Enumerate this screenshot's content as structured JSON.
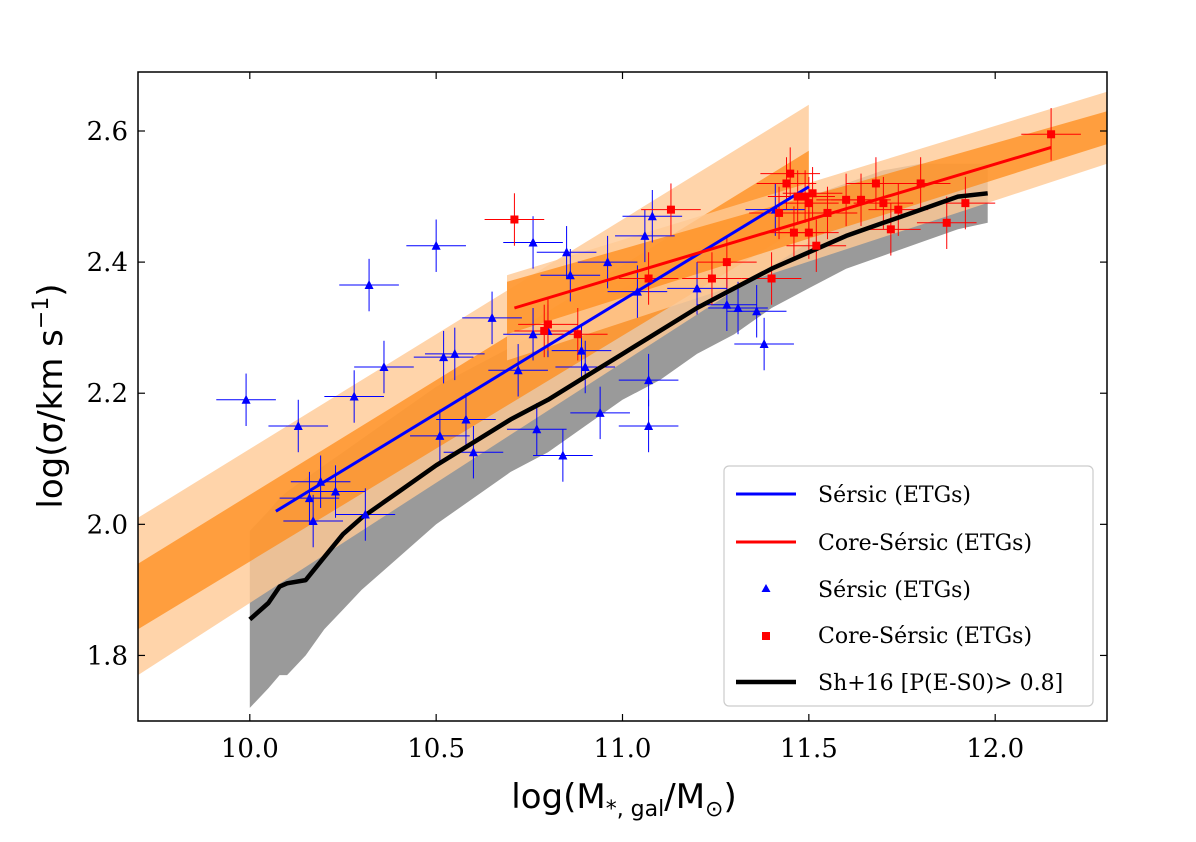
{
  "chart_data": {
    "type": "scatter",
    "title": "",
    "xlabel": "log(M",
    "xlabel_sub": "*, gal",
    "xlabel_tail": "/M",
    "xlabel_sun": "⊙",
    "xlabel_close": ")",
    "ylabel": "log(σ/km s",
    "ylabel_sup": "−1",
    "ylabel_close": ")",
    "xlim": [
      9.7,
      12.3
    ],
    "ylim": [
      1.7,
      2.69
    ],
    "xticks": [
      10.0,
      10.5,
      11.0,
      11.5,
      12.0
    ],
    "xtick_labels": [
      "10.0",
      "10.5",
      "11.0",
      "11.5",
      "12.0"
    ],
    "yticks": [
      1.8,
      2.0,
      2.2,
      2.4,
      2.6
    ],
    "ytick_labels": [
      "1.8",
      "2.0",
      "2.2",
      "2.4",
      "2.6"
    ],
    "legend": {
      "position": "lower-right",
      "entries": [
        {
          "label": "Sérsic (ETGs)",
          "kind": "line",
          "color": "#0000ff"
        },
        {
          "label": "Core-Sérsic (ETGs)",
          "kind": "line",
          "color": "#ff0000"
        },
        {
          "label": "Sérsic (ETGs)",
          "kind": "triangle",
          "color": "#0000ff"
        },
        {
          "label": "Core-Sérsic (ETGs)",
          "kind": "square",
          "color": "#ff0000"
        },
        {
          "label": "Sh+16 [P(E-S0)> 0.8]",
          "kind": "line",
          "color": "#000000"
        }
      ]
    },
    "fits": {
      "sersic": {
        "color": "#0000ff",
        "x": [
          10.07,
          11.5
        ],
        "y": [
          2.02,
          2.515
        ],
        "band_inner": {
          "x": [
            9.7,
            11.5
          ],
          "lower": [
            1.84,
            2.46
          ],
          "upper": [
            1.94,
            2.57
          ]
        },
        "band_outer": {
          "x": [
            9.7,
            11.5
          ],
          "lower": [
            1.77,
            2.43
          ],
          "upper": [
            2.01,
            2.64
          ]
        }
      },
      "core_sersic": {
        "color": "#ff0000",
        "x": [
          10.71,
          12.15
        ],
        "y": [
          2.33,
          2.575
        ],
        "band_inner": {
          "x": [
            10.69,
            12.3
          ],
          "lower": [
            2.29,
            2.58
          ],
          "upper": [
            2.37,
            2.63
          ]
        },
        "band_outer": {
          "x": [
            10.69,
            12.3
          ],
          "lower": [
            2.25,
            2.55
          ],
          "upper": [
            2.38,
            2.66
          ]
        }
      }
    },
    "sh16": {
      "color": "#000000",
      "x": [
        10.0,
        10.05,
        10.08,
        10.1,
        10.15,
        10.2,
        10.25,
        10.3,
        10.4,
        10.5,
        10.6,
        10.7,
        10.8,
        10.9,
        11.0,
        11.1,
        11.2,
        11.3,
        11.4,
        11.5,
        11.6,
        11.7,
        11.8,
        11.9,
        11.98
      ],
      "y": [
        1.855,
        1.88,
        1.905,
        1.91,
        1.915,
        1.95,
        1.985,
        2.01,
        2.05,
        2.09,
        2.125,
        2.16,
        2.19,
        2.225,
        2.26,
        2.295,
        2.33,
        2.36,
        2.39,
        2.415,
        2.44,
        2.46,
        2.48,
        2.5,
        2.505
      ],
      "band_lower": [
        1.72,
        1.75,
        1.77,
        1.77,
        1.8,
        1.84,
        1.87,
        1.9,
        1.95,
        2.0,
        2.04,
        2.08,
        2.11,
        2.15,
        2.19,
        2.22,
        2.26,
        2.29,
        2.33,
        2.36,
        2.39,
        2.41,
        2.43,
        2.45,
        2.46
      ],
      "band_upper": [
        1.99,
        2.02,
        2.04,
        2.05,
        2.07,
        2.09,
        2.11,
        2.13,
        2.17,
        2.21,
        2.24,
        2.27,
        2.3,
        2.33,
        2.36,
        2.39,
        2.42,
        2.45,
        2.48,
        2.5,
        2.52,
        2.54,
        2.55,
        2.55,
        2.55
      ]
    },
    "series": [
      {
        "name": "Sérsic (ETGs)",
        "marker": "triangle",
        "color": "#0000ff",
        "x": [
          9.99,
          10.13,
          10.17,
          10.16,
          10.19,
          10.23,
          10.28,
          10.32,
          10.31,
          10.36,
          10.5,
          10.52,
          10.51,
          10.55,
          10.58,
          10.6,
          10.65,
          10.72,
          10.76,
          10.77,
          10.76,
          10.8,
          10.84,
          10.85,
          10.86,
          10.89,
          10.9,
          10.94,
          10.96,
          11.04,
          11.06,
          11.07,
          11.07,
          11.08,
          11.2,
          11.28,
          11.31,
          11.36,
          11.38,
          11.41
        ],
        "y": [
          2.19,
          2.15,
          2.005,
          2.04,
          2.065,
          2.05,
          2.195,
          2.365,
          2.015,
          2.24,
          2.425,
          2.255,
          2.135,
          2.26,
          2.16,
          2.11,
          2.315,
          2.235,
          2.43,
          2.145,
          2.29,
          2.295,
          2.105,
          2.415,
          2.38,
          2.265,
          2.24,
          2.17,
          2.4,
          2.355,
          2.44,
          2.15,
          2.22,
          2.47,
          2.36,
          2.335,
          2.33,
          2.325,
          2.275,
          2.48
        ],
        "xerr": [
          0.08,
          0.08,
          0.08,
          0.08,
          0.08,
          0.08,
          0.08,
          0.08,
          0.08,
          0.08,
          0.08,
          0.08,
          0.08,
          0.08,
          0.08,
          0.08,
          0.08,
          0.08,
          0.08,
          0.08,
          0.08,
          0.08,
          0.08,
          0.08,
          0.08,
          0.08,
          0.08,
          0.08,
          0.08,
          0.08,
          0.08,
          0.08,
          0.08,
          0.08,
          0.08,
          0.08,
          0.08,
          0.08,
          0.08,
          0.08
        ],
        "yerr": [
          0.04,
          0.04,
          0.04,
          0.04,
          0.04,
          0.04,
          0.04,
          0.04,
          0.04,
          0.04,
          0.04,
          0.04,
          0.04,
          0.04,
          0.04,
          0.04,
          0.04,
          0.04,
          0.04,
          0.04,
          0.04,
          0.04,
          0.04,
          0.04,
          0.04,
          0.04,
          0.04,
          0.04,
          0.04,
          0.04,
          0.04,
          0.04,
          0.04,
          0.04,
          0.04,
          0.04,
          0.04,
          0.04,
          0.04,
          0.04
        ]
      },
      {
        "name": "Core-Sérsic (ETGs)",
        "marker": "square",
        "color": "#ff0000",
        "x": [
          10.71,
          10.79,
          10.8,
          10.88,
          11.07,
          11.13,
          11.24,
          11.28,
          11.4,
          11.42,
          11.44,
          11.45,
          11.46,
          11.47,
          11.49,
          11.5,
          11.5,
          11.51,
          11.52,
          11.55,
          11.6,
          11.64,
          11.68,
          11.7,
          11.72,
          11.74,
          11.8,
          11.87,
          11.92,
          12.15
        ],
        "y": [
          2.465,
          2.295,
          2.305,
          2.29,
          2.375,
          2.48,
          2.375,
          2.4,
          2.375,
          2.475,
          2.52,
          2.535,
          2.445,
          2.5,
          2.5,
          2.49,
          2.445,
          2.505,
          2.425,
          2.475,
          2.495,
          2.495,
          2.52,
          2.49,
          2.45,
          2.48,
          2.52,
          2.46,
          2.49,
          2.595
        ],
        "xerr": [
          0.08,
          0.08,
          0.08,
          0.08,
          0.08,
          0.08,
          0.08,
          0.08,
          0.08,
          0.08,
          0.08,
          0.08,
          0.08,
          0.08,
          0.08,
          0.08,
          0.08,
          0.08,
          0.08,
          0.08,
          0.08,
          0.08,
          0.08,
          0.08,
          0.08,
          0.08,
          0.08,
          0.08,
          0.08,
          0.08
        ],
        "yerr": [
          0.04,
          0.04,
          0.04,
          0.04,
          0.04,
          0.04,
          0.04,
          0.04,
          0.04,
          0.04,
          0.04,
          0.04,
          0.04,
          0.04,
          0.04,
          0.04,
          0.04,
          0.04,
          0.04,
          0.04,
          0.04,
          0.04,
          0.04,
          0.04,
          0.04,
          0.04,
          0.04,
          0.04,
          0.04,
          0.04
        ]
      }
    ],
    "colors": {
      "band_inner": "#ff8c1a",
      "band_outer": "#ffc995",
      "sh16_band": "#9a9a9a",
      "axes": "#000000"
    }
  }
}
